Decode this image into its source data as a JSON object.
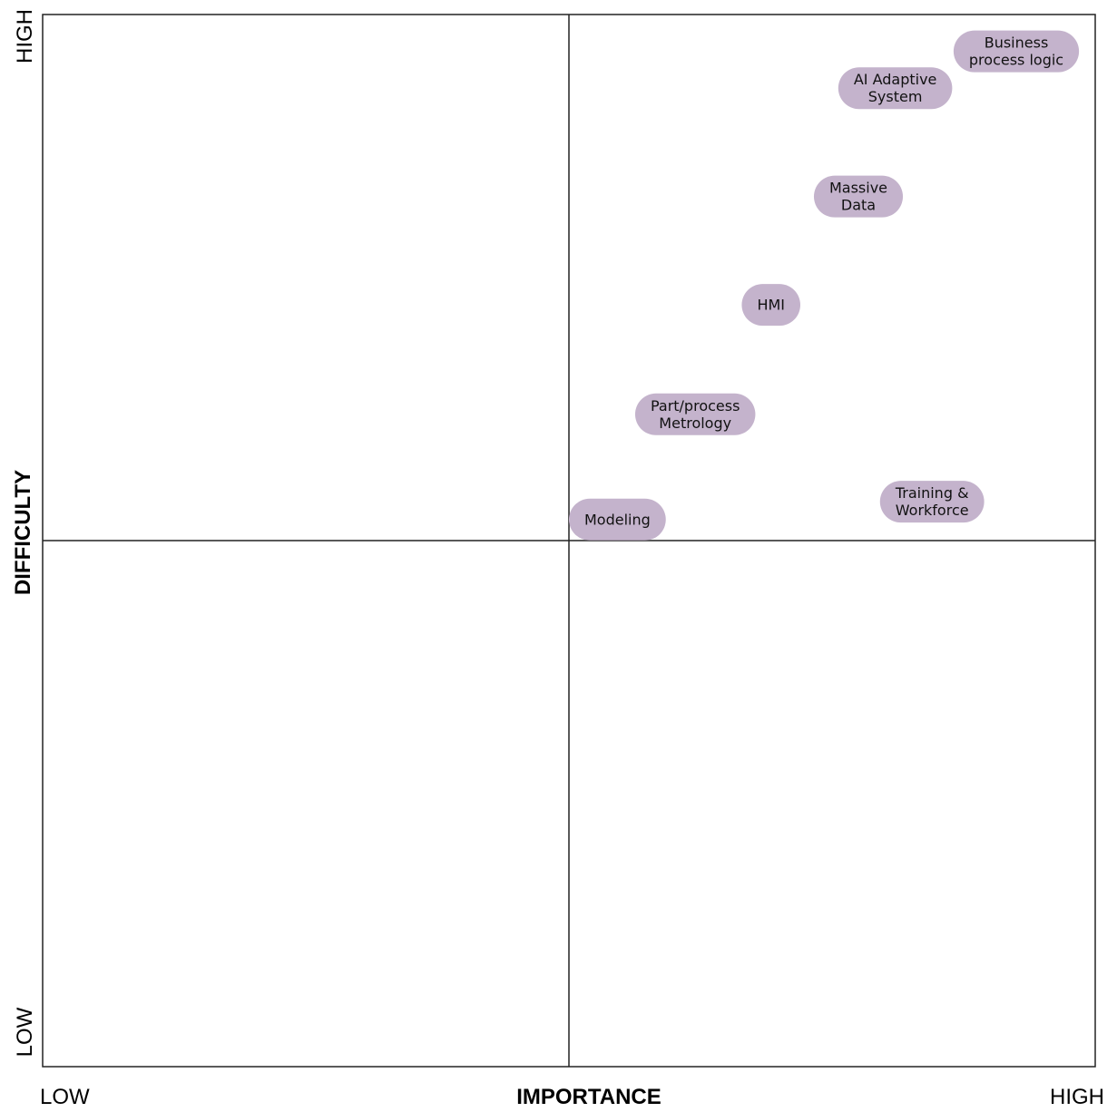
{
  "chart_data": {
    "type": "scatter",
    "xlabel": "IMPORTANCE",
    "ylabel": "DIFFICULTY",
    "x_ticks": [
      "LOW",
      "HIGH"
    ],
    "y_ticks": [
      "LOW",
      "HIGH"
    ],
    "xlim": [
      0,
      1
    ],
    "ylim": [
      0,
      1
    ],
    "quadrant_dividers": {
      "x": 0.5,
      "y": 0.5
    },
    "grid": false,
    "point_color": "#c4b3cc",
    "points": [
      {
        "label": [
          "Business",
          "process logic"
        ],
        "x": 0.925,
        "y": 0.965
      },
      {
        "label": [
          "AI Adaptive",
          "System"
        ],
        "x": 0.81,
        "y": 0.93
      },
      {
        "label": [
          "Massive",
          "Data"
        ],
        "x": 0.775,
        "y": 0.827
      },
      {
        "label": [
          "HMI"
        ],
        "x": 0.692,
        "y": 0.724
      },
      {
        "label": [
          "Part/process",
          "Metrology"
        ],
        "x": 0.62,
        "y": 0.62
      },
      {
        "label": [
          "Training &",
          "Workforce"
        ],
        "x": 0.845,
        "y": 0.537
      },
      {
        "label": [
          "Modeling"
        ],
        "x": 0.546,
        "y": 0.52
      }
    ]
  }
}
